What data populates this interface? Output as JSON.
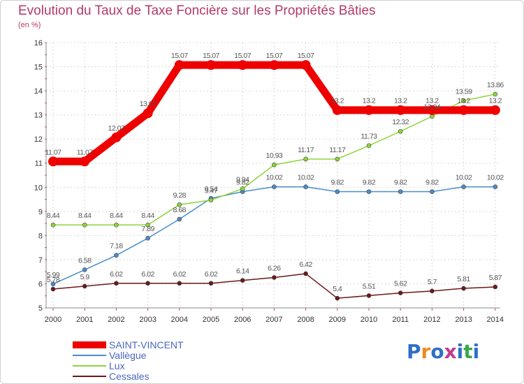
{
  "chart_data": {
    "type": "line",
    "title": "Evolution du Taux de Taxe Foncière sur les Propriétés Bâties",
    "subtitle": "(en %)",
    "categories": [
      "2000",
      "2001",
      "2002",
      "2003",
      "2004",
      "2005",
      "2006",
      "2007",
      "2008",
      "2009",
      "2010",
      "2011",
      "2012",
      "2013",
      "2014"
    ],
    "ylim": [
      5,
      16
    ],
    "yticks": [
      5,
      6,
      7,
      8,
      9,
      10,
      11,
      12,
      13,
      14,
      15,
      16
    ],
    "grid": true,
    "legend_position": "bottom-left",
    "series": [
      {
        "name": "SAINT-VINCENT",
        "color": "#ee0000",
        "values": [
          11.07,
          11.07,
          12.07,
          13.07,
          15.07,
          15.07,
          15.07,
          15.07,
          15.07,
          13.2,
          13.2,
          13.2,
          13.2,
          13.2,
          13.2
        ],
        "labels": [
          "11.07",
          "11.07",
          "12.07",
          "13.07",
          "15.07",
          "15.07",
          "15.07",
          "15.07",
          "15.07",
          "13.2",
          "13.2",
          "13.2",
          "13.2",
          "13.2",
          "13.2"
        ]
      },
      {
        "name": "Vallègue",
        "color": "#4a8cc8",
        "values": [
          5.99,
          6.58,
          7.18,
          7.89,
          8.68,
          9.54,
          9.82,
          10.02,
          10.02,
          9.82,
          9.82,
          9.82,
          9.82,
          10.02,
          10.02
        ],
        "labels": [
          "5.99",
          "6.58",
          "7.18",
          "7.89",
          "8.68",
          "9.54",
          "9.82",
          "10.02",
          "10.02",
          "9.82",
          "9.82",
          "9.82",
          "9.82",
          "10.02",
          "10.02"
        ]
      },
      {
        "name": "Lux",
        "color": "#8dd53a",
        "values": [
          8.44,
          8.44,
          8.44,
          8.44,
          9.28,
          9.47,
          9.94,
          10.93,
          11.17,
          11.17,
          11.73,
          12.32,
          12.94,
          13.59,
          13.86
        ],
        "labels": [
          "8.44",
          "8.44",
          "8.44",
          "8.44",
          "9.28",
          "9.47",
          "9.94",
          "10.93",
          "11.17",
          "11.17",
          "11.73",
          "12.32",
          "12.94",
          "13.59",
          "13.86"
        ]
      },
      {
        "name": "Cessales",
        "color": "#6b1818",
        "values": [
          5.78,
          5.9,
          6.02,
          6.02,
          6.02,
          6.02,
          6.14,
          6.26,
          6.42,
          5.4,
          5.51,
          5.62,
          5.7,
          5.81,
          5.87
        ],
        "labels": [
          "5.78",
          "5.9",
          "6.02",
          "6.02",
          "6.02",
          "6.02",
          "6.14",
          "6.26",
          "6.42",
          "5.4",
          "5.51",
          "5.62",
          "5.7",
          "5.81",
          "5.87"
        ]
      }
    ]
  },
  "legend": {
    "items": [
      {
        "label": "SAINT-VINCENT",
        "color": "#ee0000"
      },
      {
        "label": "Vallègue",
        "color": "#4a8cc8"
      },
      {
        "label": "Lux",
        "color": "#8dd53a"
      },
      {
        "label": "Cessales",
        "color": "#6b1818"
      }
    ]
  },
  "logo": {
    "letters": [
      "P",
      "r",
      "o",
      "x",
      "i",
      "t",
      "i"
    ],
    "colors": [
      "#2f6fc6",
      "#f08a1c",
      "#2f6fc6",
      "#c23a8f",
      "#2f6fc6",
      "#3aa64a",
      "#2f6fc6"
    ]
  }
}
